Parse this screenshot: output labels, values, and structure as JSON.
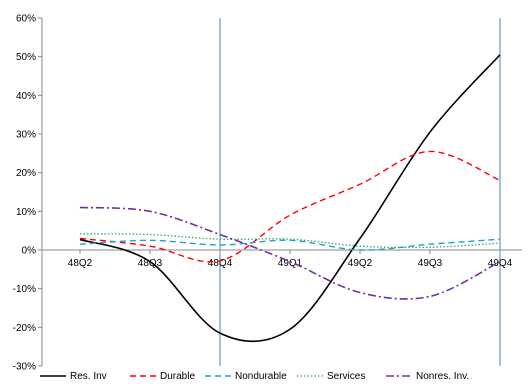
{
  "chart_data": {
    "type": "line",
    "categories": [
      "48Q2",
      "48Q3",
      "48Q4",
      "49Q1",
      "49Q2",
      "49Q3",
      "49Q4"
    ],
    "x_ticks": [
      "48Q2",
      "48Q3",
      "48Q4",
      "49Q1",
      "49Q2",
      "49Q3",
      "49Q4"
    ],
    "y_ticks": [
      "60%",
      "50%",
      "40%",
      "30%",
      "20%",
      "10%",
      "0%",
      "-10%",
      "-20%",
      "-30%"
    ],
    "y_tick_values": [
      60,
      50,
      40,
      30,
      20,
      10,
      0,
      -10,
      -20,
      -30
    ],
    "ylim": [
      -30,
      60
    ],
    "grid": false,
    "legend_position": "bottom",
    "vertical_markers": [
      "48Q4",
      "49Q4"
    ],
    "marker_color": "#4f81bd",
    "series": [
      {
        "name": "Res. Inv",
        "color": "#000000",
        "dash": "solid",
        "values": [
          2.7,
          -3.0,
          -21.5,
          -20.5,
          3.0,
          30.5,
          50.5
        ]
      },
      {
        "name": "Durable",
        "color": "#ff0000",
        "dash": "dashed",
        "values": [
          3.0,
          1.0,
          -2.8,
          9.0,
          17.0,
          25.5,
          18.0
        ]
      },
      {
        "name": "Nondurable",
        "color": "#1fa3c8",
        "dash": "dashed",
        "values": [
          1.5,
          2.5,
          1.3,
          2.5,
          0.0,
          1.5,
          2.8
        ]
      },
      {
        "name": "Services",
        "color": "#33aa66",
        "dash": "dotted",
        "values": [
          4.2,
          4.0,
          2.8,
          2.8,
          1.0,
          0.7,
          1.8
        ]
      },
      {
        "name": "Nonres. Inv.",
        "color": "#7030a0",
        "dash": "dashdot",
        "values": [
          11.0,
          10.0,
          4.0,
          -3.0,
          -11.0,
          -12.0,
          -3.0
        ]
      }
    ]
  }
}
